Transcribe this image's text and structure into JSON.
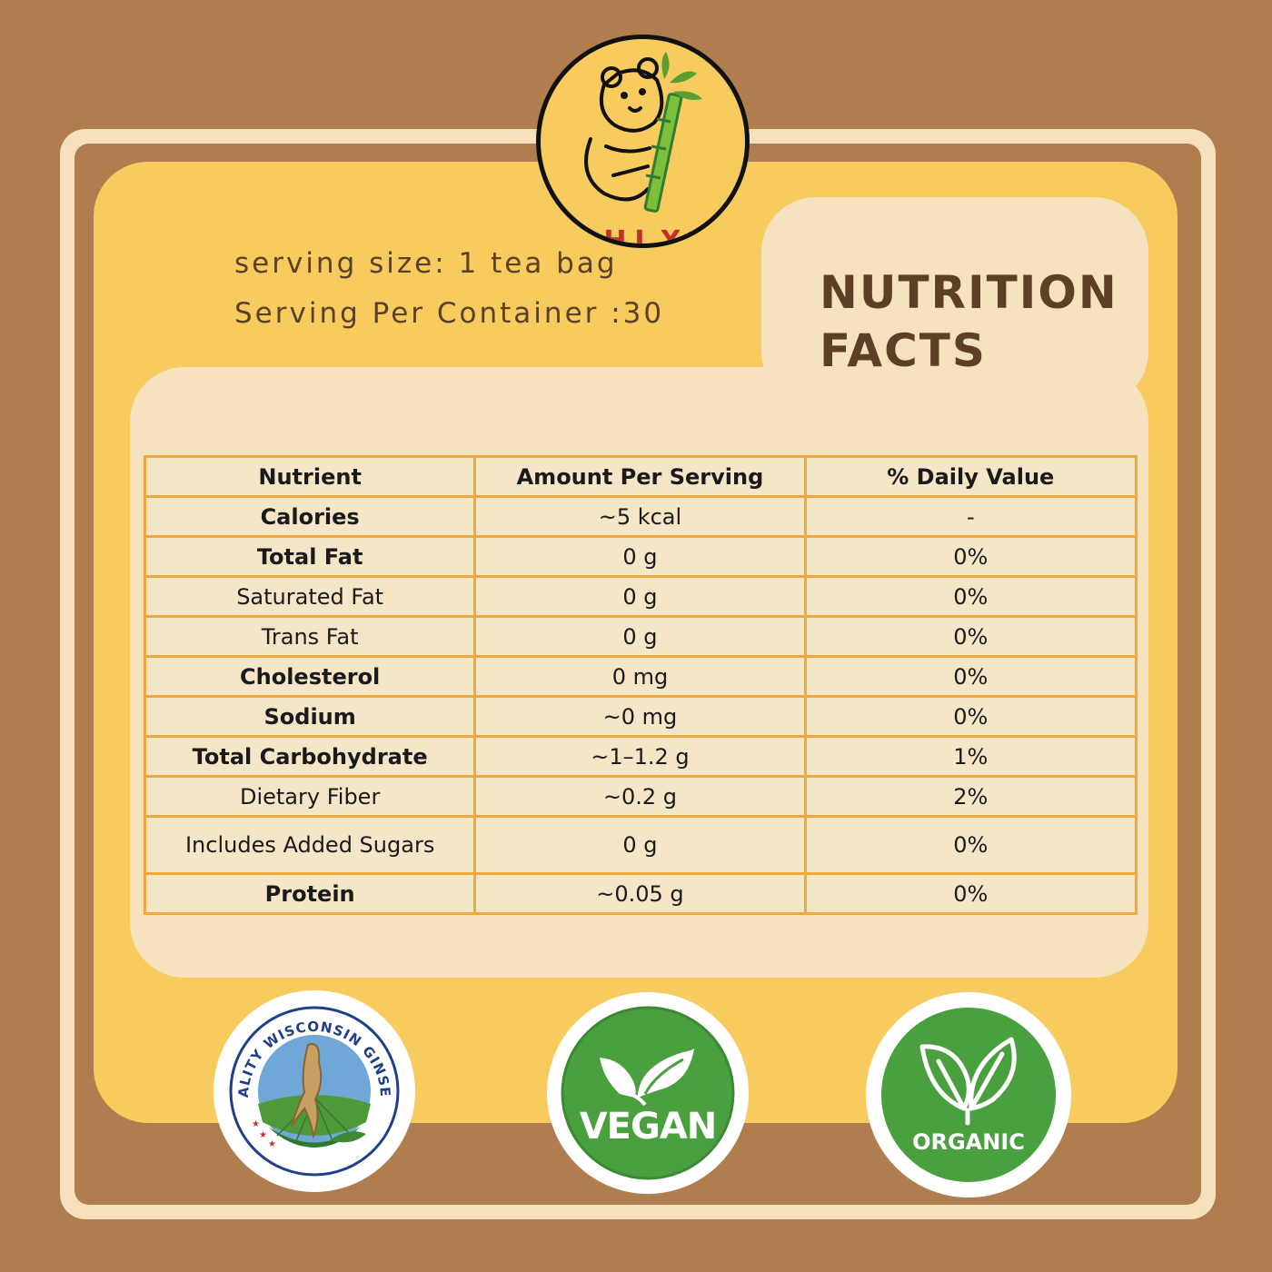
{
  "logo": {
    "text": "HLX",
    "icon": "bear-bamboo-icon"
  },
  "serving": {
    "size": "serving size: 1 tea bag",
    "per_container": "Serving Per Container :30"
  },
  "title": {
    "line1": "NUTRITION",
    "line2": "FACTS"
  },
  "table": {
    "headers": [
      "Nutrient",
      "Amount Per Serving",
      "% Daily Value"
    ],
    "rows": [
      {
        "nutrient": "Calories",
        "amount": "~5 kcal",
        "dv": "-",
        "bold": true
      },
      {
        "nutrient": "Total Fat",
        "amount": "0 g",
        "dv": "0%",
        "bold": true
      },
      {
        "nutrient": "Saturated Fat",
        "amount": "0 g",
        "dv": "0%",
        "bold": false
      },
      {
        "nutrient": "Trans Fat",
        "amount": "0 g",
        "dv": "0%",
        "bold": false
      },
      {
        "nutrient": "Cholesterol",
        "amount": "0 mg",
        "dv": "0%",
        "bold": true
      },
      {
        "nutrient": "Sodium",
        "amount": "~0 mg",
        "dv": "0%",
        "bold": true
      },
      {
        "nutrient": "Total Carbohydrate",
        "amount": "~1–1.2 g",
        "dv": "1%",
        "bold": true
      },
      {
        "nutrient": "Dietary Fiber",
        "amount": "~0.2 g",
        "dv": "2%",
        "bold": false
      },
      {
        "nutrient": "Includes Added Sugars",
        "amount": "0 g",
        "dv": "0%",
        "bold": false
      },
      {
        "nutrient": "Protein",
        "amount": "~0.05 g",
        "dv": "0%",
        "bold": true
      }
    ]
  },
  "badges": [
    {
      "text": "QUALITY WISCONSIN GINSENG",
      "icon": "ginseng-root-icon"
    },
    {
      "text": "VEGAN",
      "icon": "vegan-leaves-icon"
    },
    {
      "text": "ORGANIC",
      "icon": "organic-leaves-icon"
    }
  ],
  "colors": {
    "background": "#b07e4e",
    "panel": "#f8cb5f",
    "cream": "#f6e2bf",
    "table_border": "#f2a93b",
    "badge_green": "#4aa03f",
    "logo_red": "#c0312b"
  }
}
